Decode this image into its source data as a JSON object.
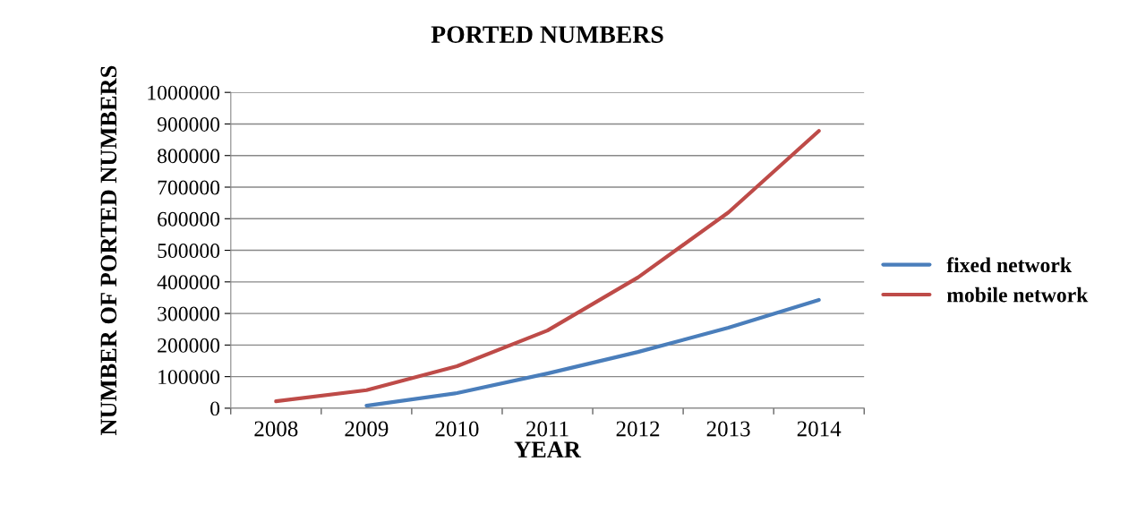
{
  "chart_data": {
    "type": "line",
    "title": "PORTED NUMBERS",
    "xlabel": "YEAR",
    "ylabel": "NUMBER OF PORTED NUMBERS",
    "categories": [
      "2008",
      "2009",
      "2010",
      "2011",
      "2012",
      "2013",
      "2014"
    ],
    "series": [
      {
        "name": "fixed network",
        "color": "#4a7ebb",
        "values": [
          null,
          8000,
          48000,
          110000,
          178000,
          255000,
          343000
        ]
      },
      {
        "name": "mobile network",
        "color": "#be4b48",
        "values": [
          22000,
          57000,
          133000,
          246000,
          414000,
          620000,
          878000
        ]
      }
    ],
    "ylim": [
      0,
      1000000
    ],
    "yticks": [
      0,
      100000,
      200000,
      300000,
      400000,
      500000,
      600000,
      700000,
      800000,
      900000,
      1000000
    ],
    "grid": "y",
    "legend": "right",
    "marker": "none",
    "line_style": "solid"
  }
}
